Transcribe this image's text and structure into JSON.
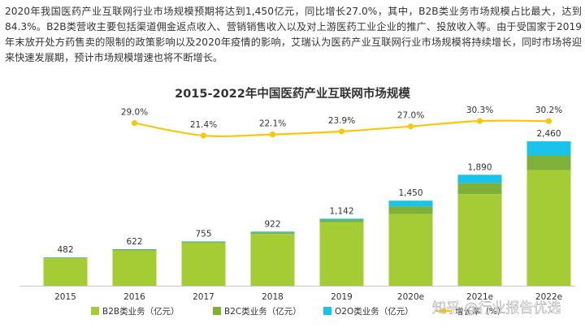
{
  "intro": {
    "text": "2020年我国医药产业互联网行业市场规模预期将达到1,450亿元，同比增长27.0%，其中，B2B类业务市场规模占比最大，达到84.3%。B2B类营收主要包括渠道佣金返点收入、营销销售收入以及对上游医药工业企业的推广、投放收入等。由于受国家于2019年末放开处方药售卖的限制的政策影响以及2020年疫情的影响，艾瑞认为医药产业互联网行业市场规模将持续增长，同时市场将迎来快速发展期，预计市场规模增速也将不断增长。"
  },
  "watermark": "知乎 @行业报告优选",
  "colors": {
    "b2b": "#a5cc34",
    "b2c": "#7fb13a",
    "o2o": "#19c3ea",
    "line": "#f6c80c",
    "axis": "#c8c8c8"
  },
  "chart_data": {
    "type": "bar",
    "stacked": true,
    "title": "2015-2022年中国医药产业互联网市场规模",
    "categories": [
      "2015",
      "2016",
      "2017",
      "2018",
      "2019",
      "2020e",
      "2021e",
      "2022e"
    ],
    "series": [
      {
        "name": "B2B类业务（亿元）",
        "values": [
          467,
          600,
          727,
          882,
          1085,
          1222,
          1560,
          1970
        ]
      },
      {
        "name": "B2C类业务（亿元）",
        "values": [
          10,
          15,
          18,
          25,
          35,
          130,
          190,
          250
        ]
      },
      {
        "name": "O2O类业务（亿元）",
        "values": [
          5,
          7,
          10,
          15,
          22,
          98,
          140,
          240
        ]
      }
    ],
    "totals": [
      482,
      622,
      755,
      922,
      1142,
      1450,
      1890,
      2460
    ],
    "total_labels": [
      "482",
      "622",
      "755",
      "922",
      "1,142",
      "1,450",
      "1,890",
      "2,460"
    ],
    "line_series": {
      "name": "增长率（%）",
      "values": [
        29.0,
        21.4,
        22.1,
        23.9,
        27.0,
        30.3,
        30.2
      ],
      "labels": [
        "29.0%",
        "21.4%",
        "22.1%",
        "23.9%",
        "27.0%",
        "30.3%",
        "30.2%"
      ],
      "start_category": "2016"
    },
    "ylim": [
      0,
      2600
    ],
    "legend_position": "bottom"
  }
}
